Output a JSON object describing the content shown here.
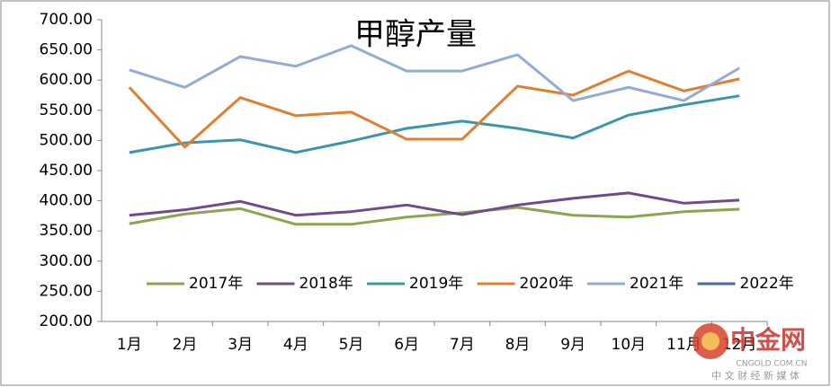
{
  "chart_data": {
    "type": "line",
    "title": "甲醇产量",
    "categories": [
      "1月",
      "2月",
      "3月",
      "4月",
      "5月",
      "6月",
      "7月",
      "8月",
      "9月",
      "10月",
      "11月",
      "12月"
    ],
    "series": [
      {
        "name": "2017年",
        "color": "#8aa64e",
        "values": [
          362,
          378,
          387,
          361,
          361,
          373,
          380,
          389,
          376,
          373,
          382,
          386
        ]
      },
      {
        "name": "2018年",
        "color": "#6f4a8e",
        "values": [
          376,
          385,
          399,
          376,
          382,
          393,
          377,
          393,
          404,
          413,
          396,
          401
        ]
      },
      {
        "name": "2019年",
        "color": "#3a96ad",
        "values": [
          480,
          496,
          501,
          480,
          499,
          520,
          532,
          520,
          504,
          542,
          559,
          574
        ]
      },
      {
        "name": "2020年",
        "color": "#e07f30",
        "values": [
          588,
          489,
          571,
          541,
          547,
          502,
          502,
          590,
          575,
          615,
          582,
          602
        ]
      },
      {
        "name": "2021年",
        "color": "#93acd4",
        "values": [
          617,
          588,
          639,
          623,
          657,
          615,
          615,
          642,
          566,
          588,
          566,
          620
        ]
      },
      {
        "name": "2022年",
        "color": "#3e6ea8",
        "values": [
          null,
          null,
          null,
          null,
          null,
          null,
          null,
          null,
          null,
          null,
          null,
          null
        ]
      }
    ],
    "ylim": [
      200,
      700
    ],
    "yticks": [
      {
        "value": 200,
        "label": "200.00"
      },
      {
        "value": 250,
        "label": "250.00"
      },
      {
        "value": 300,
        "label": "300.00"
      },
      {
        "value": 350,
        "label": "350.00"
      },
      {
        "value": 400,
        "label": "400.00"
      },
      {
        "value": 450,
        "label": "450.00"
      },
      {
        "value": 500,
        "label": "500.00"
      },
      {
        "value": 550,
        "label": "550.00"
      },
      {
        "value": 600,
        "label": "600.00"
      },
      {
        "value": 650,
        "label": "650.00"
      },
      {
        "value": 700,
        "label": "700.00"
      }
    ],
    "grid": false,
    "legend": "bottom-inside"
  },
  "watermark": {
    "brand": "中金网",
    "domain": "CNGOLD.COM.CN",
    "slogan": "中 文 财 经 新 媒 体"
  }
}
